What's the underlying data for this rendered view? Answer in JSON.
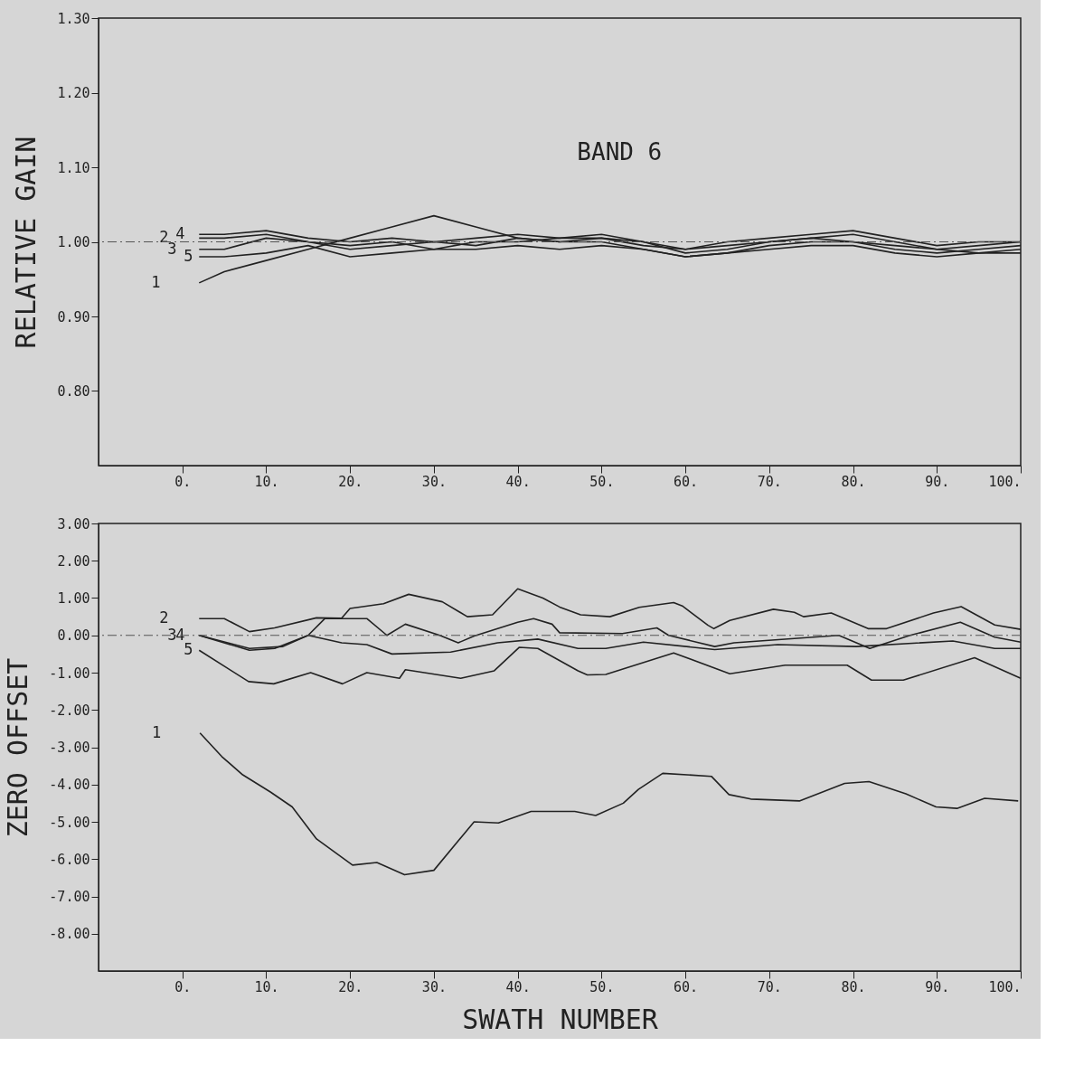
{
  "chart_data": [
    {
      "type": "line",
      "ylabel": "RELATIVE GAIN",
      "annotations": [
        "BAND 6"
      ],
      "xlim": [
        -10,
        100
      ],
      "xticks": [
        {
          "value": 0,
          "label": "0."
        },
        {
          "value": 10,
          "label": "10."
        },
        {
          "value": 20,
          "label": "20."
        },
        {
          "value": 30,
          "label": "30."
        },
        {
          "value": 40,
          "label": "40."
        },
        {
          "value": 50,
          "label": "50."
        },
        {
          "value": 60,
          "label": "60."
        },
        {
          "value": 70,
          "label": "70."
        },
        {
          "value": 80,
          "label": "80."
        },
        {
          "value": 90,
          "label": "90."
        },
        {
          "value": 100,
          "label": "100."
        }
      ],
      "ylim": [
        0.7,
        1.3
      ],
      "yticks": [
        {
          "value": 0.8,
          "label": "0.80"
        },
        {
          "value": 0.9,
          "label": "0.90"
        },
        {
          "value": 1.0,
          "label": "1.00"
        },
        {
          "value": 1.1,
          "label": "1.10"
        },
        {
          "value": 1.2,
          "label": "1.20"
        },
        {
          "value": 1.3,
          "label": "1.30"
        }
      ],
      "x": [
        2,
        5,
        10,
        15,
        20,
        25,
        30,
        35,
        40,
        45,
        50,
        55,
        60,
        65,
        70,
        75,
        80,
        85,
        90,
        95,
        100
      ],
      "series": [
        {
          "name": "1",
          "color": "#222222",
          "values": [
            0.945,
            0.96,
            0.975,
            0.99,
            1.005,
            1.02,
            1.035,
            1.02,
            1.005,
            1.0,
            1.005,
            0.995,
            0.99,
            0.995,
            1.0,
            1.005,
            1.0,
            0.995,
            0.99,
            0.985,
            0.99
          ]
        },
        {
          "name": "2",
          "color": "#222222",
          "values": [
            1.005,
            1.005,
            1.01,
            1.0,
            0.995,
            1.0,
            0.99,
            1.0,
            1.0,
            1.005,
            1.01,
            1.0,
            0.985,
            0.99,
            1.0,
            1.005,
            1.01,
            1.0,
            0.99,
            0.995,
            1.0
          ]
        },
        {
          "name": "3",
          "color": "#222222",
          "values": [
            0.99,
            0.99,
            1.005,
            1.0,
            0.99,
            0.995,
            1.0,
            0.995,
            1.005,
            1.0,
            1.0,
            0.99,
            0.98,
            0.985,
            0.995,
            1.0,
            1.0,
            0.99,
            0.985,
            0.99,
            0.995
          ]
        },
        {
          "name": "4",
          "color": "#222222",
          "values": [
            1.01,
            1.01,
            1.015,
            1.005,
            1.0,
            1.005,
            1.0,
            1.005,
            1.01,
            1.005,
            1.005,
            1.0,
            0.99,
            1.0,
            1.005,
            1.01,
            1.015,
            1.005,
            0.995,
            1.0,
            1.0
          ]
        },
        {
          "name": "5",
          "color": "#222222",
          "values": [
            0.98,
            0.98,
            0.985,
            0.995,
            0.98,
            0.985,
            0.99,
            0.99,
            0.995,
            0.99,
            0.995,
            0.99,
            0.98,
            0.985,
            0.99,
            0.995,
            0.995,
            0.985,
            0.98,
            0.985,
            0.985
          ]
        }
      ],
      "ref_lines": [
        {
          "axis": "y",
          "value": 1.0,
          "color": "#555555",
          "line_style": "dashed"
        }
      ],
      "grid": false
    },
    {
      "type": "line",
      "xlabel": "SWATH NUMBER",
      "ylabel": "ZERO OFFSET",
      "xlim": [
        -10,
        100
      ],
      "xticks": [
        {
          "value": 0,
          "label": "0."
        },
        {
          "value": 10,
          "label": "10."
        },
        {
          "value": 20,
          "label": "20."
        },
        {
          "value": 30,
          "label": "30."
        },
        {
          "value": 40,
          "label": "40."
        },
        {
          "value": 50,
          "label": "50."
        },
        {
          "value": 60,
          "label": "60."
        },
        {
          "value": 70,
          "label": "70."
        },
        {
          "value": 80,
          "label": "80."
        },
        {
          "value": 90,
          "label": "90."
        },
        {
          "value": 100,
          "label": "100."
        }
      ],
      "ylim": [
        -9,
        3
      ],
      "yticks": [
        {
          "value": -8,
          "label": "-8.00"
        },
        {
          "value": -7,
          "label": "-7.00"
        },
        {
          "value": -6,
          "label": "-6.00"
        },
        {
          "value": -5,
          "label": "-5.00"
        },
        {
          "value": -4,
          "label": "-4.00"
        },
        {
          "value": -3,
          "label": "-3.00"
        },
        {
          "value": -2,
          "label": "-2.00"
        },
        {
          "value": -1,
          "label": "-1.00"
        },
        {
          "value": 0,
          "label": "0.00"
        },
        {
          "value": 1,
          "label": "1.00"
        },
        {
          "value": 2,
          "label": "2.00"
        },
        {
          "value": 3,
          "label": "3.00"
        }
      ],
      "series": [
        {
          "name": "1",
          "color": "#222222",
          "x": [
            2.1,
            4.7,
            7.2,
            10.5,
            13.1,
            16,
            20.3,
            23.2,
            26.5,
            30,
            34.8,
            37.7,
            41.6,
            46.8,
            49.3,
            52.6,
            54.4,
            57.3,
            63.1,
            65.2,
            67.8,
            73.6,
            79,
            81.9,
            86.3,
            89.9,
            92.4,
            95.7,
            99.7
          ],
          "values": [
            -2.62,
            -3.25,
            -3.74,
            -4.2,
            -4.6,
            -5.46,
            -6.16,
            -6.09,
            -6.42,
            -6.3,
            -5.0,
            -5.03,
            -4.72,
            -4.72,
            -4.83,
            -4.5,
            -4.13,
            -3.7,
            -3.78,
            -4.27,
            -4.39,
            -4.44,
            -3.97,
            -3.92,
            -4.25,
            -4.6,
            -4.64,
            -4.37,
            -4.44
          ]
        },
        {
          "name": "2",
          "color": "#222222",
          "x": [
            2,
            5,
            8,
            11,
            16,
            19,
            20,
            24,
            27,
            31,
            34,
            37,
            40,
            43,
            45,
            47.5,
            51,
            54.5,
            58.6,
            59.7,
            62.7,
            63.4,
            65.3,
            70.5,
            73,
            74.1,
            77.4,
            81.8,
            84,
            89.6,
            92.9,
            96.9,
            100
          ],
          "values": [
            0.45,
            0.45,
            0.1,
            0.2,
            0.47,
            0.46,
            0.72,
            0.85,
            1.1,
            0.9,
            0.5,
            0.55,
            1.25,
            1.0,
            0.76,
            0.55,
            0.5,
            0.75,
            0.88,
            0.78,
            0.27,
            0.18,
            0.4,
            0.7,
            0.62,
            0.5,
            0.6,
            0.18,
            0.18,
            0.6,
            0.77,
            0.28,
            0.16
          ]
        },
        {
          "name": "3",
          "color": "#222222",
          "x": [
            2,
            8,
            12,
            15,
            17,
            22,
            24.4,
            26.6,
            30.7,
            32.9,
            34.8,
            40,
            41.9,
            44.1,
            45,
            52.5,
            56.6,
            58,
            63.5,
            65.8,
            78.3,
            82,
            86.8,
            92.8,
            96.9,
            100
          ],
          "values": [
            0.0,
            -0.35,
            -0.3,
            0.0,
            0.45,
            0.45,
            0.0,
            0.3,
            0.0,
            -0.2,
            -0.02,
            0.35,
            0.45,
            0.3,
            0.07,
            0.05,
            0.2,
            0.0,
            -0.3,
            -0.2,
            0.0,
            -0.35,
            0.0,
            0.35,
            -0.05,
            -0.18
          ]
        },
        {
          "name": "4",
          "color": "#222222",
          "x": [
            2,
            8,
            11,
            15,
            19,
            22,
            25,
            32,
            37.6,
            42.4,
            47.2,
            50.5,
            55,
            63.5,
            71,
            80.4,
            91.9,
            96.9,
            100
          ],
          "values": [
            0.0,
            -0.4,
            -0.35,
            0.0,
            -0.2,
            -0.25,
            -0.5,
            -0.45,
            -0.2,
            -0.1,
            -0.35,
            -0.35,
            -0.18,
            -0.38,
            -0.25,
            -0.3,
            -0.15,
            -0.35,
            -0.35
          ]
        },
        {
          "name": "5",
          "color": "#222222",
          "x": [
            2,
            7.9,
            10.9,
            15.3,
            19.1,
            22,
            25.9,
            26.6,
            33.2,
            37.2,
            40.2,
            42.4,
            47.2,
            48.3,
            50.5,
            58.6,
            65.3,
            71.9,
            79.3,
            82.2,
            86,
            94.5,
            100
          ],
          "values": [
            -0.4,
            -1.24,
            -1.3,
            -1.0,
            -1.3,
            -1.0,
            -1.15,
            -0.92,
            -1.15,
            -0.95,
            -0.32,
            -0.35,
            -0.95,
            -1.06,
            -1.05,
            -0.47,
            -1.03,
            -0.8,
            -0.8,
            -1.2,
            -1.2,
            -0.6,
            -1.15
          ]
        }
      ],
      "ref_lines": [
        {
          "axis": "y",
          "value": 0.0,
          "color": "#555555",
          "line_style": "dashed"
        }
      ],
      "grid": false
    }
  ]
}
